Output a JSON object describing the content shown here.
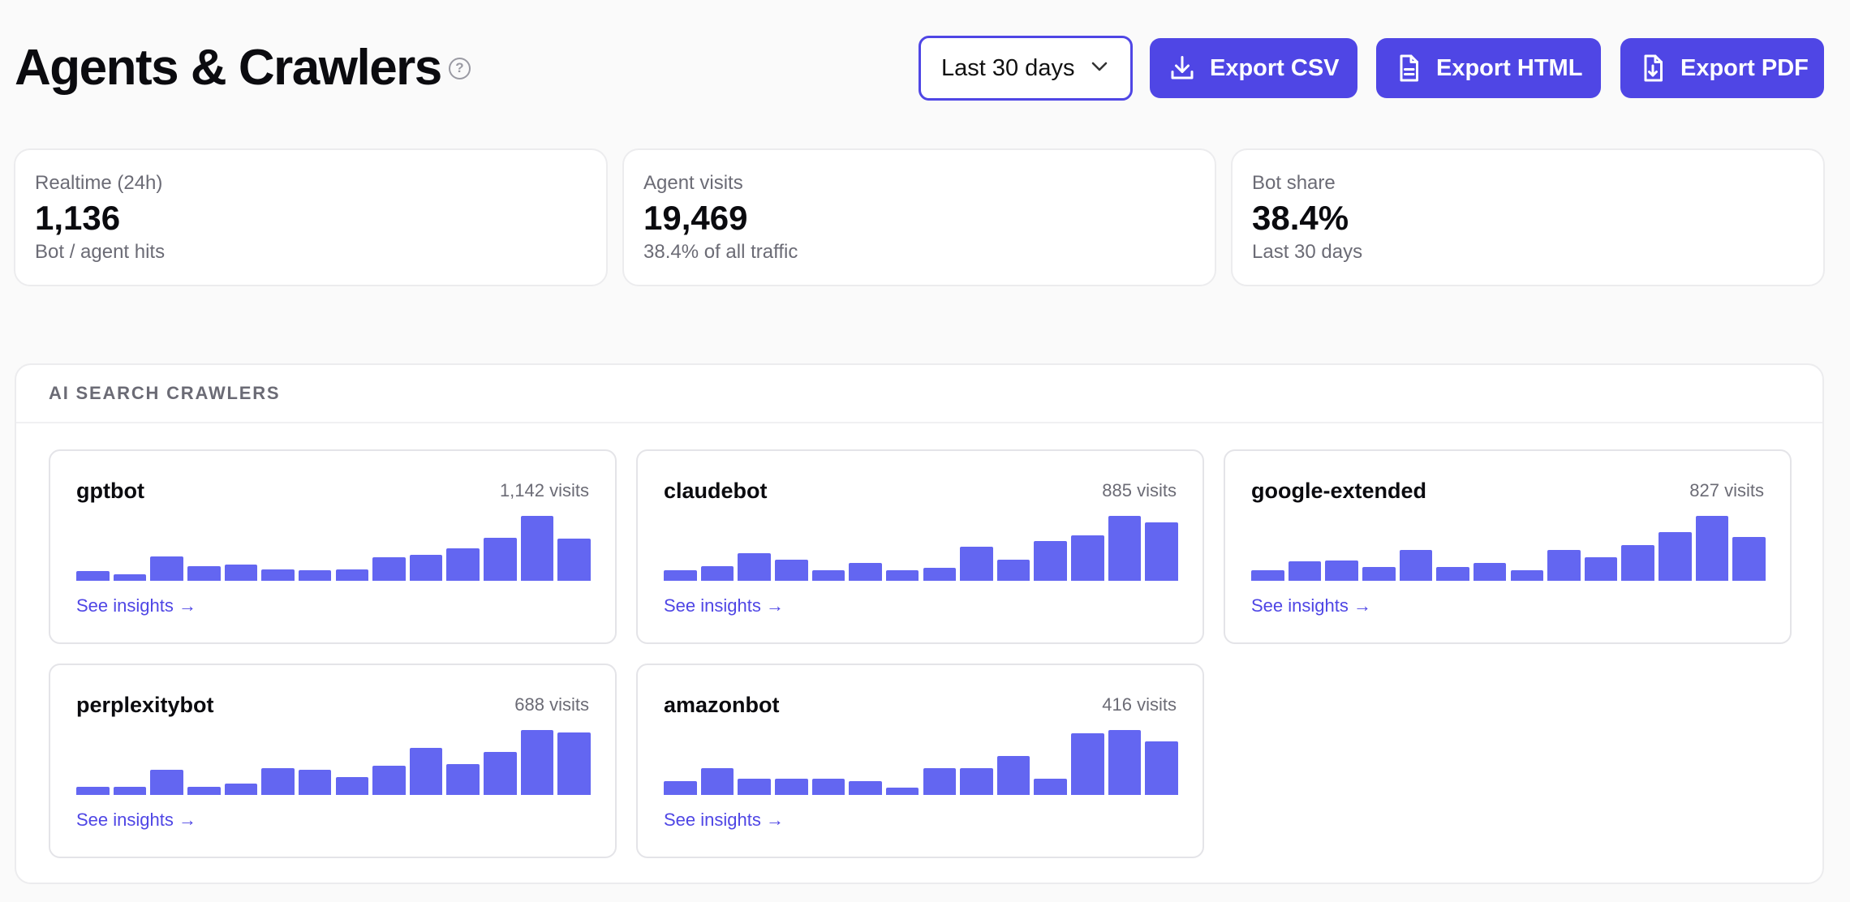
{
  "header": {
    "title": "Agents & Crawlers",
    "help_icon": "question-circle-icon",
    "date_range": "Last 30 days",
    "buttons": [
      {
        "label": "Export CSV",
        "icon": "download-icon"
      },
      {
        "label": "Export HTML",
        "icon": "file-text-icon"
      },
      {
        "label": "Export PDF",
        "icon": "file-download-icon"
      }
    ]
  },
  "stats": [
    {
      "label": "Realtime (24h)",
      "value": "1,136",
      "sub": "Bot / agent hits"
    },
    {
      "label": "Agent visits",
      "value": "19,469",
      "sub": "38.4% of all traffic"
    },
    {
      "label": "Bot share",
      "value": "38.4%",
      "sub": "Last 30 days"
    }
  ],
  "crawlers_panel": {
    "title": "AI SEARCH CRAWLERS",
    "crawlers": [
      {
        "name": "gptbot",
        "visits": "1,142 visits",
        "link": "See insights →",
        "trend": [
          15,
          10,
          37,
          22,
          25,
          18,
          16,
          17,
          36,
          40,
          50,
          66,
          100,
          65
        ]
      },
      {
        "name": "claudebot",
        "visits": "885 visits",
        "link": "See insights →",
        "trend": [
          16,
          23,
          42,
          32,
          16,
          28,
          16,
          20,
          52,
          32,
          61,
          70,
          100,
          90
        ]
      },
      {
        "name": "google-extended",
        "visits": "827 visits",
        "link": "See insights →",
        "trend": [
          16,
          30,
          31,
          21,
          47,
          21,
          27,
          16,
          47,
          36,
          55,
          75,
          100,
          68
        ]
      },
      {
        "name": "perplexitybot",
        "visits": "688 visits",
        "link": "See insights →",
        "trend": [
          12,
          13,
          39,
          12,
          18,
          41,
          39,
          28,
          45,
          73,
          48,
          66,
          100,
          96
        ]
      },
      {
        "name": "amazonbot",
        "visits": "416 visits",
        "link": "See insights →",
        "trend": [
          21,
          41,
          25,
          25,
          25,
          21,
          11,
          41,
          41,
          60,
          25,
          95,
          100,
          82
        ]
      }
    ]
  },
  "colors": {
    "accent": "#4f46e5",
    "bar": "#6366f1"
  }
}
